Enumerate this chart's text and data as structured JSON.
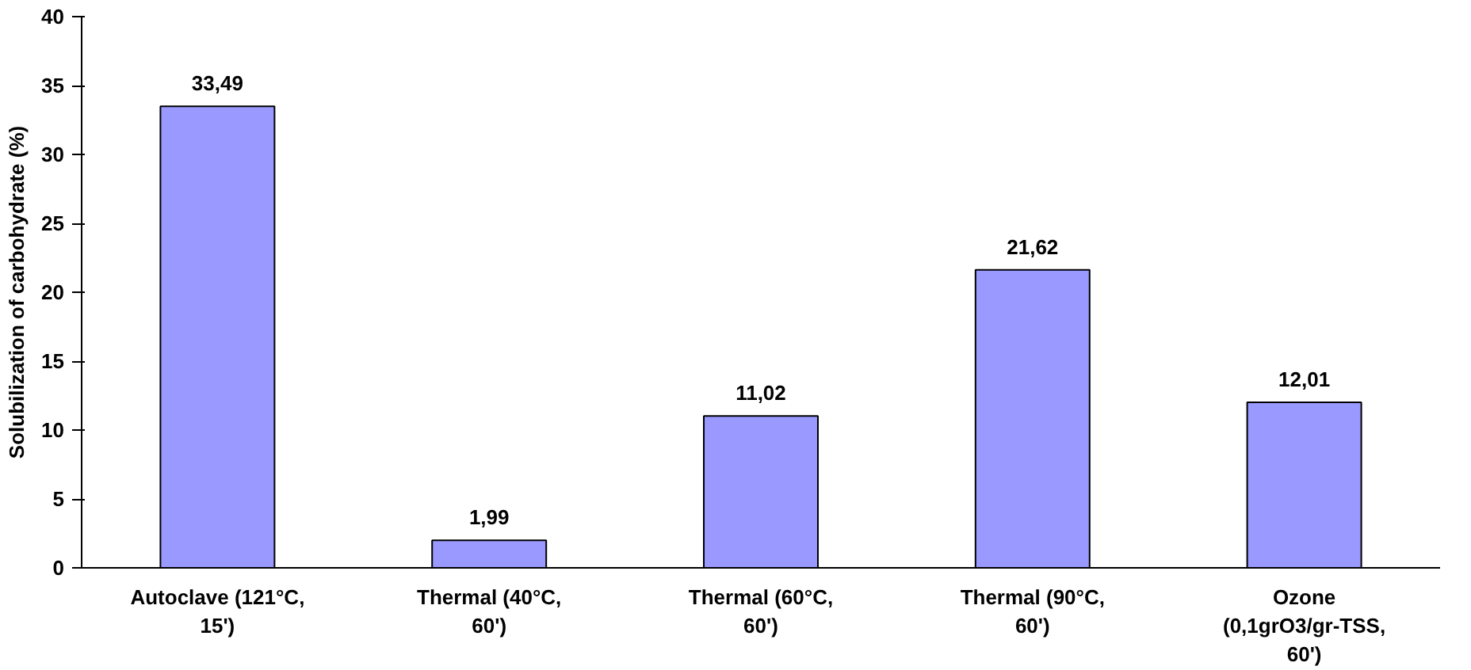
{
  "chart_data": {
    "type": "bar",
    "ylabel": "Solubilization of carbohydrate (%)",
    "categories": [
      "Autoclave (121°C, 15')",
      "Thermal (40°C, 60')",
      "Thermal (60°C, 60')",
      "Thermal (90°C, 60')",
      "Ozone (0,1grO3/gr-TSS, 60')"
    ],
    "values": [
      33.49,
      1.99,
      11.02,
      21.62,
      12.01
    ],
    "value_labels": [
      "33,49",
      "1,99",
      "11,02",
      "21,62",
      "12,01"
    ],
    "color": "#9999ff",
    "ylim": [
      0,
      40
    ],
    "yticks": [
      0,
      5,
      10,
      15,
      20,
      25,
      30,
      35,
      40
    ],
    "grid": false
  }
}
